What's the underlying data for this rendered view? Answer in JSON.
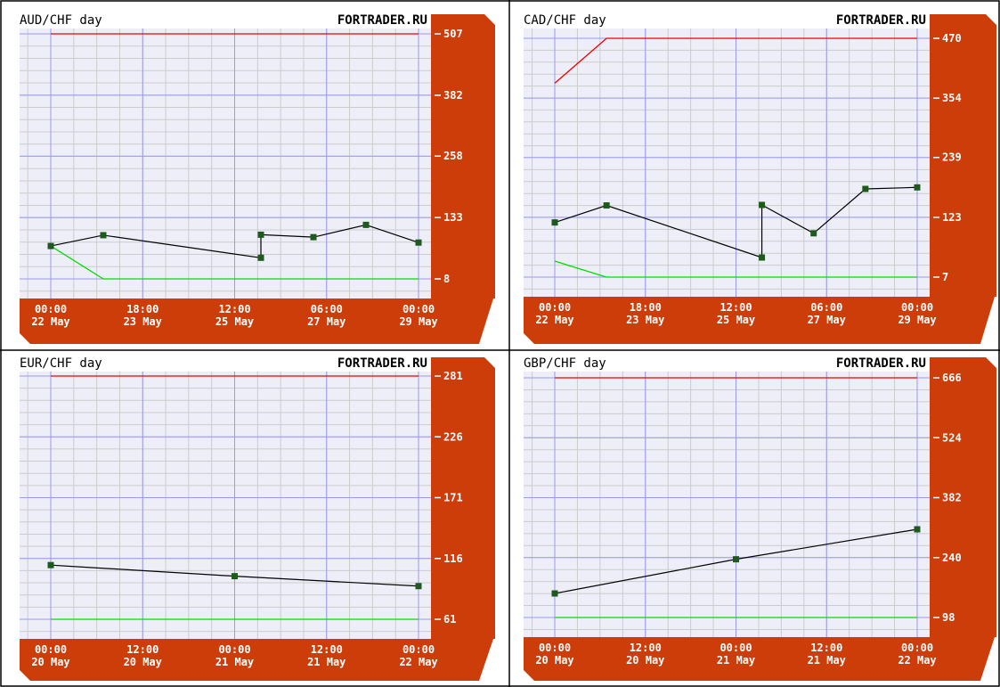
{
  "colors": {
    "panel_fill": "#cc3d0a",
    "plot_background": "#eeeef8",
    "major_grid": "#9999ee",
    "minor_grid": "#cccccc",
    "upper_line": "#ee0000",
    "lower_line": "#00dd00",
    "series_line": "#000000",
    "marker": "#1e5a1e",
    "frame": "#000000"
  },
  "charts": [
    {
      "chart_data": {
        "type": "line",
        "title": "AUD/CHF day",
        "watermark": "FORTRADER.RU",
        "x_ticks": [
          {
            "time": "00:00",
            "date": "22 May",
            "x": 0
          },
          {
            "time": "18:00",
            "date": "23 May",
            "x": 42
          },
          {
            "time": "12:00",
            "date": "25 May",
            "x": 84
          },
          {
            "time": "06:00",
            "date": "27 May",
            "x": 126
          },
          {
            "time": "00:00",
            "date": "29 May",
            "x": 168
          }
        ],
        "xlim": [
          0,
          168
        ],
        "y_ticks": [
          507,
          382,
          258,
          133,
          8
        ],
        "ylim": [
          8,
          507
        ],
        "upper_line": {
          "x": [
            0,
            168
          ],
          "y": [
            507,
            507
          ]
        },
        "lower_line": {
          "x": [
            0,
            24,
            168
          ],
          "y": [
            75,
            8,
            8
          ]
        },
        "series": [
          {
            "x": [
              0,
              24,
              96,
              96,
              120,
              144,
              168
            ],
            "y": [
              75,
              97,
              51,
              98,
              93,
              118,
              82
            ]
          }
        ]
      }
    },
    {
      "chart_data": {
        "type": "line",
        "title": "CAD/CHF day",
        "watermark": "FORTRADER.RU",
        "x_ticks": [
          {
            "time": "00:00",
            "date": "22 May",
            "x": 0
          },
          {
            "time": "18:00",
            "date": "23 May",
            "x": 42
          },
          {
            "time": "12:00",
            "date": "25 May",
            "x": 84
          },
          {
            "time": "06:00",
            "date": "27 May",
            "x": 126
          },
          {
            "time": "00:00",
            "date": "29 May",
            "x": 168
          }
        ],
        "xlim": [
          0,
          168
        ],
        "y_ticks": [
          470,
          354,
          239,
          123,
          7
        ],
        "ylim": [
          7,
          470
        ],
        "upper_line": {
          "x": [
            0,
            24,
            168
          ],
          "y": [
            383,
            470,
            470
          ]
        },
        "lower_line": {
          "x": [
            0,
            24,
            168
          ],
          "y": [
            38,
            7,
            7
          ]
        },
        "series": [
          {
            "x": [
              0,
              24,
              96,
              96,
              120,
              144,
              168
            ],
            "y": [
              113,
              146,
              45,
              147,
              92,
              178,
              181
            ]
          }
        ]
      }
    },
    {
      "chart_data": {
        "type": "line",
        "title": "EUR/CHF day",
        "watermark": "FORTRADER.RU",
        "x_ticks": [
          {
            "time": "00:00",
            "date": "20 May",
            "x": 0
          },
          {
            "time": "12:00",
            "date": "20 May",
            "x": 12
          },
          {
            "time": "00:00",
            "date": "21 May",
            "x": 24
          },
          {
            "time": "12:00",
            "date": "21 May",
            "x": 36
          },
          {
            "time": "00:00",
            "date": "22 May",
            "x": 48
          }
        ],
        "xlim": [
          0,
          48
        ],
        "y_ticks": [
          281,
          226,
          171,
          116,
          61
        ],
        "ylim": [
          61,
          281
        ],
        "upper_line": {
          "x": [
            0,
            48
          ],
          "y": [
            281,
            281
          ]
        },
        "lower_line": {
          "x": [
            0,
            48
          ],
          "y": [
            61,
            61
          ]
        },
        "series": [
          {
            "x": [
              0,
              24,
              48
            ],
            "y": [
              110,
              100,
              91
            ]
          }
        ]
      }
    },
    {
      "chart_data": {
        "type": "line",
        "title": "GBP/CHF day",
        "watermark": "FORTRADER.RU",
        "x_ticks": [
          {
            "time": "00:00",
            "date": "20 May",
            "x": 0
          },
          {
            "time": "12:00",
            "date": "20 May",
            "x": 12
          },
          {
            "time": "00:00",
            "date": "21 May",
            "x": 24
          },
          {
            "time": "12:00",
            "date": "21 May",
            "x": 36
          },
          {
            "time": "00:00",
            "date": "22 May",
            "x": 48
          }
        ],
        "xlim": [
          0,
          48
        ],
        "y_ticks": [
          666,
          524,
          382,
          240,
          98
        ],
        "ylim": [
          98,
          666
        ],
        "upper_line": {
          "x": [
            0,
            48
          ],
          "y": [
            666,
            666
          ]
        },
        "lower_line": {
          "x": [
            0,
            48
          ],
          "y": [
            98,
            98
          ]
        },
        "series": [
          {
            "x": [
              0,
              24,
              48
            ],
            "y": [
              155,
              236,
              307
            ]
          }
        ]
      }
    }
  ]
}
